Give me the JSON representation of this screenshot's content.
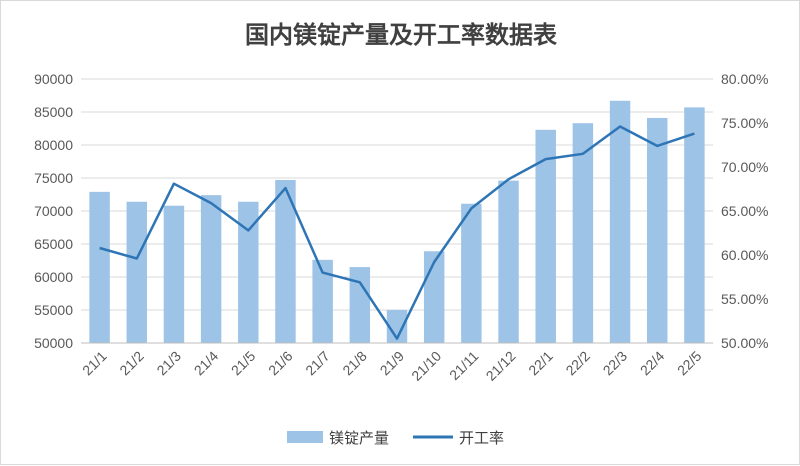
{
  "chart_data": {
    "type": "bar",
    "title": "国内镁锭产量及开工率数据表",
    "categories": [
      "21/1",
      "21/2",
      "21/3",
      "21/4",
      "21/5",
      "21/6",
      "21/7",
      "21/8",
      "21/9",
      "21/10",
      "21/11",
      "21/12",
      "22/1",
      "22/2",
      "22/3",
      "22/4",
      "22/5"
    ],
    "series": [
      {
        "name": "镁锭产量",
        "type": "bar",
        "axis": "left",
        "color": "#9dc3e6",
        "values": [
          72900,
          71400,
          70800,
          72400,
          71400,
          74700,
          62600,
          61500,
          55000,
          63900,
          71100,
          74600,
          82300,
          83300,
          86700,
          84100,
          85700
        ]
      },
      {
        "name": "开工率",
        "type": "line",
        "axis": "right",
        "color": "#2e75b6",
        "values": [
          60.8,
          59.6,
          68.1,
          65.9,
          62.8,
          67.6,
          58.0,
          56.9,
          50.5,
          59.2,
          65.3,
          68.6,
          70.9,
          71.5,
          74.6,
          72.4,
          73.8
        ]
      }
    ],
    "y_left": {
      "min": 50000,
      "max": 90000,
      "step": 5000,
      "ticks": [
        "50000",
        "55000",
        "60000",
        "65000",
        "70000",
        "75000",
        "80000",
        "85000",
        "90000"
      ]
    },
    "y_right": {
      "min": 50,
      "max": 80,
      "step": 5,
      "ticks": [
        "50.00%",
        "55.00%",
        "60.00%",
        "65.00%",
        "70.00%",
        "75.00%",
        "80.00%"
      ]
    },
    "grid": true,
    "legend_position": "bottom"
  }
}
